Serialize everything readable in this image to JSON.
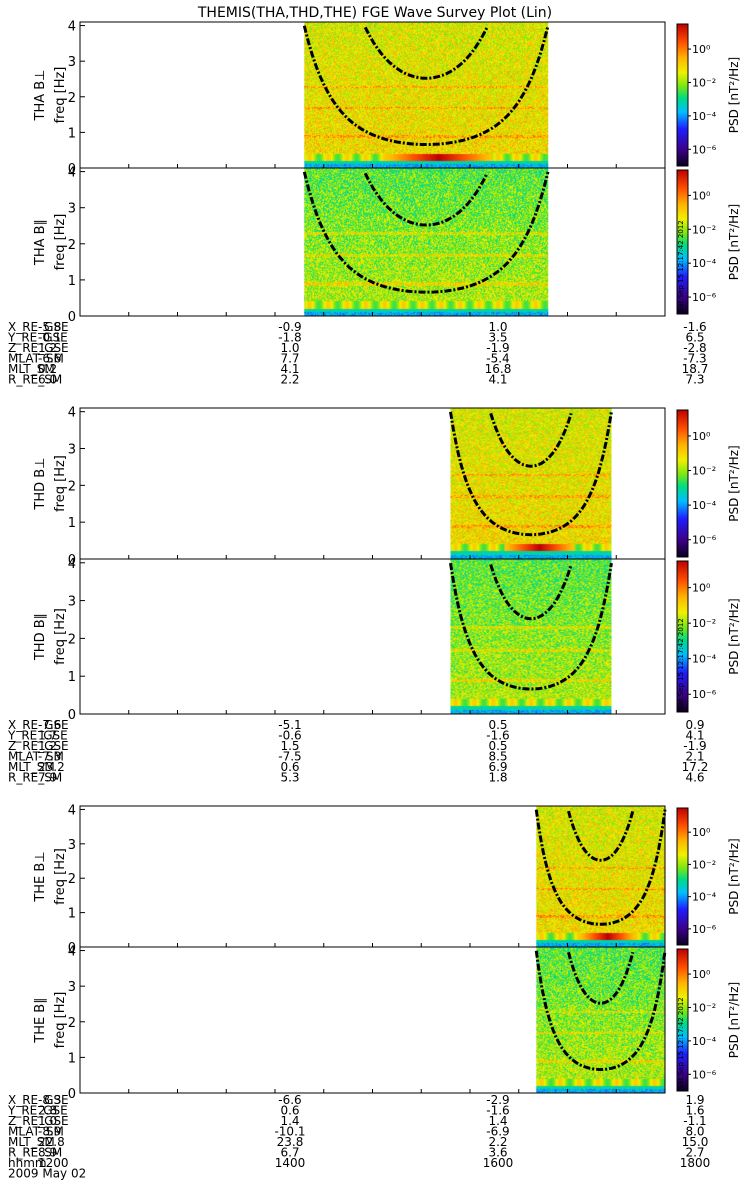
{
  "title": "THEMIS(THA,THD,THE) FGE Wave Survey Plot (Lin)",
  "timestamp": "Sat Sep 15 12:17:42 2012",
  "colorbar": {
    "label": "PSD [nT²/Hz]",
    "tick_labels": [
      "10⁰",
      "10⁻²",
      "10⁻⁴",
      "10⁻⁶"
    ],
    "log_range": [
      -7,
      1.5
    ]
  },
  "chart_data": [
    {
      "type": "heatmap",
      "id": "tha",
      "panels": [
        {
          "ylabel_top": "THA B⊥",
          "ylabel": "freq [Hz]",
          "ylim": [
            0,
            4.1
          ],
          "yticks": [
            0,
            1,
            2,
            3,
            4
          ]
        },
        {
          "ylabel_top": "THA B∥",
          "ylabel": "freq [Hz]",
          "ylim": [
            0,
            4.1
          ],
          "yticks": [
            0,
            1,
            2,
            3,
            4
          ]
        }
      ],
      "xlim": [
        1200,
        1800
      ],
      "data_x": [
        1430,
        1680
      ],
      "ephemeris": {
        "labels": [
          "X_RE_GSE",
          "Y_RE_GSE",
          "Z_RE_GSE",
          "MLAT_SM",
          "MLT_SM",
          "R_RE_SM"
        ],
        "columns": [
          [
            "-5.8",
            "-0.1",
            "1.2",
            "-6.6",
            "0.2",
            "6.0"
          ],
          [
            "-0.9",
            "-1.8",
            "1.0",
            "7.7",
            "4.1",
            "2.2"
          ],
          [
            "1.0",
            "3.5",
            "-1.9",
            "-5.4",
            "16.8",
            "4.1"
          ],
          [
            "-1.6",
            "6.5",
            "-2.8",
            "-7.3",
            "18.7",
            "7.3"
          ]
        ]
      }
    },
    {
      "type": "heatmap",
      "id": "thd",
      "panels": [
        {
          "ylabel_top": "THD B⊥",
          "ylabel": "freq [Hz]",
          "ylim": [
            0,
            4.1
          ],
          "yticks": [
            0,
            1,
            2,
            3,
            4
          ]
        },
        {
          "ylabel_top": "THD B∥",
          "ylabel": "freq [Hz]",
          "ylim": [
            0,
            4.1
          ],
          "yticks": [
            0,
            1,
            2,
            3,
            4
          ]
        }
      ],
      "xlim": [
        1200,
        1800
      ],
      "data_x": [
        1580,
        1745
      ],
      "ephemeris": {
        "labels": [
          "X_RE_GSE",
          "Y_RE_GSE",
          "Z_RE_GSE",
          "MLAT_SM",
          "MLT_SM",
          "R_RE_SM"
        ],
        "columns": [
          [
            "-7.6",
            "1.7",
            "1.2",
            "-7.3",
            "23.2",
            "7.9"
          ],
          [
            "-5.1",
            "-0.6",
            "1.5",
            "-7.5",
            "0.6",
            "5.3"
          ],
          [
            "0.5",
            "-1.6",
            "0.5",
            "8.5",
            "6.9",
            "1.8"
          ],
          [
            "0.9",
            "4.1",
            "-1.9",
            "2.1",
            "17.2",
            "4.6"
          ]
        ]
      }
    },
    {
      "type": "heatmap",
      "id": "the",
      "panels": [
        {
          "ylabel_top": "THE B⊥",
          "ylabel": "freq [Hz]",
          "ylim": [
            0,
            4.1
          ],
          "yticks": [
            0,
            1,
            2,
            3,
            4
          ]
        },
        {
          "ylabel_top": "THE B∥",
          "ylabel": "freq [Hz]",
          "ylim": [
            0,
            4.1
          ],
          "yticks": [
            0,
            1,
            2,
            3,
            4
          ]
        }
      ],
      "xlim": [
        1200,
        1800
      ],
      "data_x": [
        1668,
        1800
      ],
      "ephemeris": {
        "labels": [
          "X_RE_GSE",
          "Y_RE_GSE",
          "Z_RE_GSE",
          "MLAT_SM",
          "MLT_SM",
          "R_RE_SM"
        ],
        "columns": [
          [
            "-8.3",
            "2.8",
            "1.0",
            "-8.9",
            "22.8",
            "8.9"
          ],
          [
            "-6.6",
            "0.6",
            "1.4",
            "-10.1",
            "23.8",
            "6.7"
          ],
          [
            "-2.9",
            "-1.6",
            "1.4",
            "-6.9",
            "2.2",
            "3.6"
          ],
          [
            "1.9",
            "1.6",
            "-1.1",
            "8.0",
            "15.0",
            "2.7"
          ]
        ],
        "extra_labels": [
          "hhmm",
          "2009 May 02"
        ],
        "hhmm": [
          "1200",
          "1400",
          "1600",
          "1800"
        ]
      }
    }
  ]
}
